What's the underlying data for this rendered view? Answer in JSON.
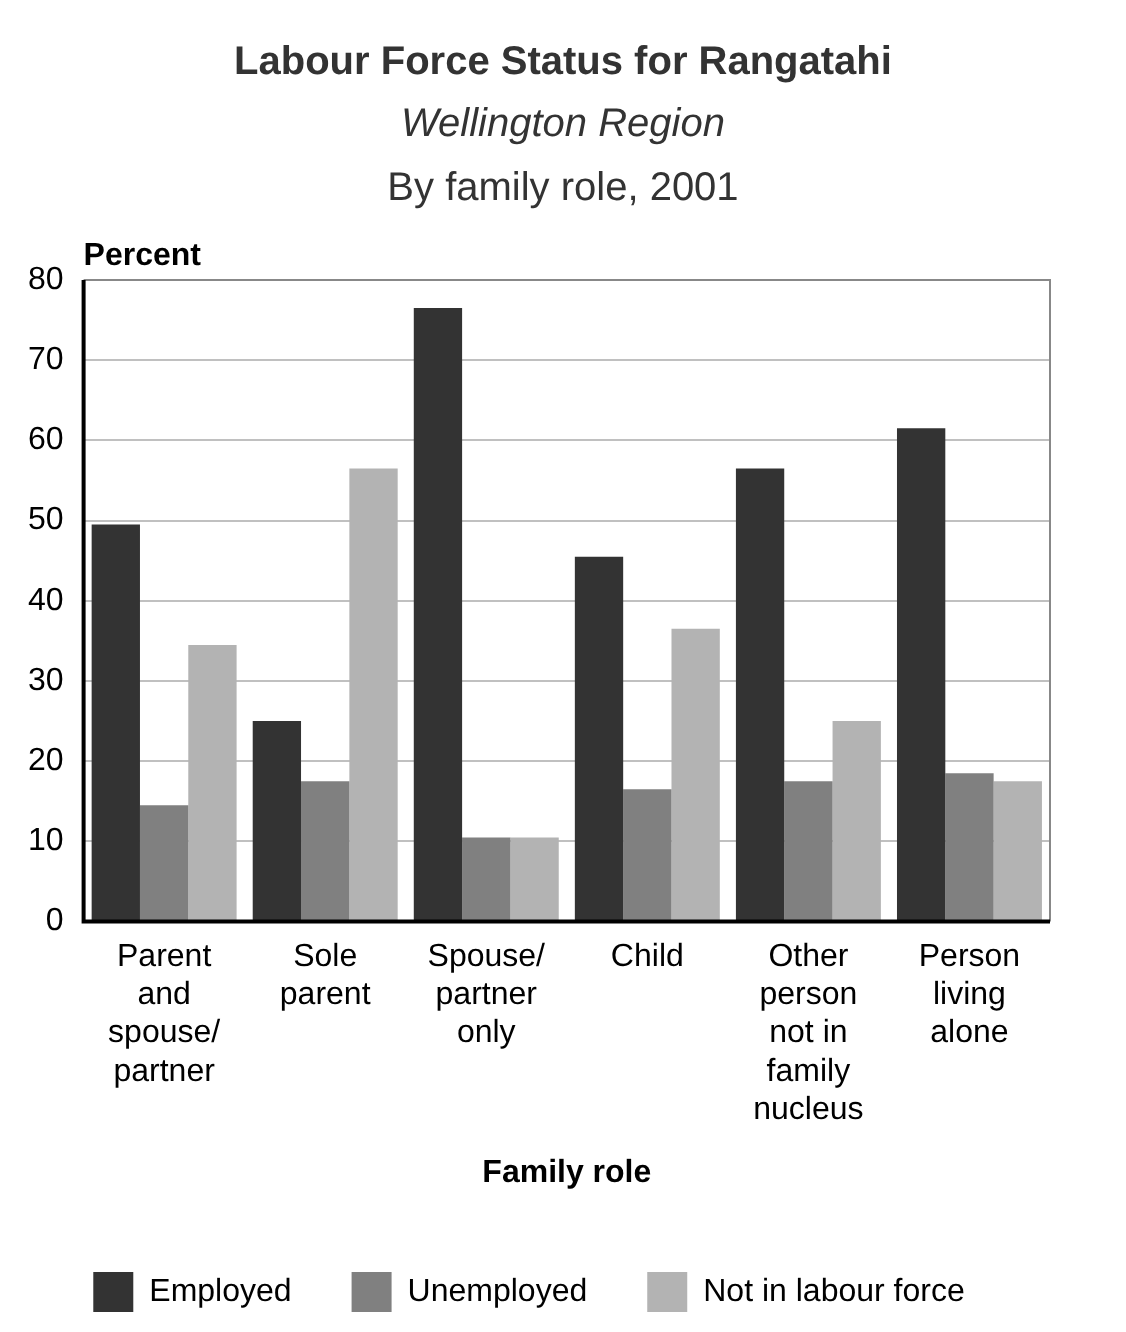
{
  "chart_data": {
    "type": "bar",
    "title": "Labour Force Status for Rangatahi",
    "subtitle": "Wellington Region",
    "annotations": [
      "By family role, 2001"
    ],
    "xlabel": "Family role",
    "ylabel": "Percent",
    "categories": [
      "Parent and spouse/ partner",
      "Sole parent",
      "Spouse/ partner only",
      "Child",
      "Other person not in family nucleus",
      "Person living alone"
    ],
    "series": [
      {
        "name": "Employed",
        "color": "#333333",
        "values": [
          49.5,
          25,
          76.5,
          45.5,
          56.5,
          61.5
        ]
      },
      {
        "name": "Unemployed",
        "color": "#808080",
        "values": [
          14.5,
          17.5,
          10.5,
          16.5,
          17.5,
          18.5
        ]
      },
      {
        "name": "Not in labour force",
        "color": "#b3b3b3",
        "values": [
          34.5,
          56.5,
          10.5,
          36.5,
          25,
          17.5
        ]
      }
    ],
    "ylim": [
      0,
      80
    ],
    "yticks": [
      0,
      10,
      20,
      30,
      40,
      50,
      60,
      70,
      80
    ],
    "grid": "y",
    "legend": "bottom"
  }
}
